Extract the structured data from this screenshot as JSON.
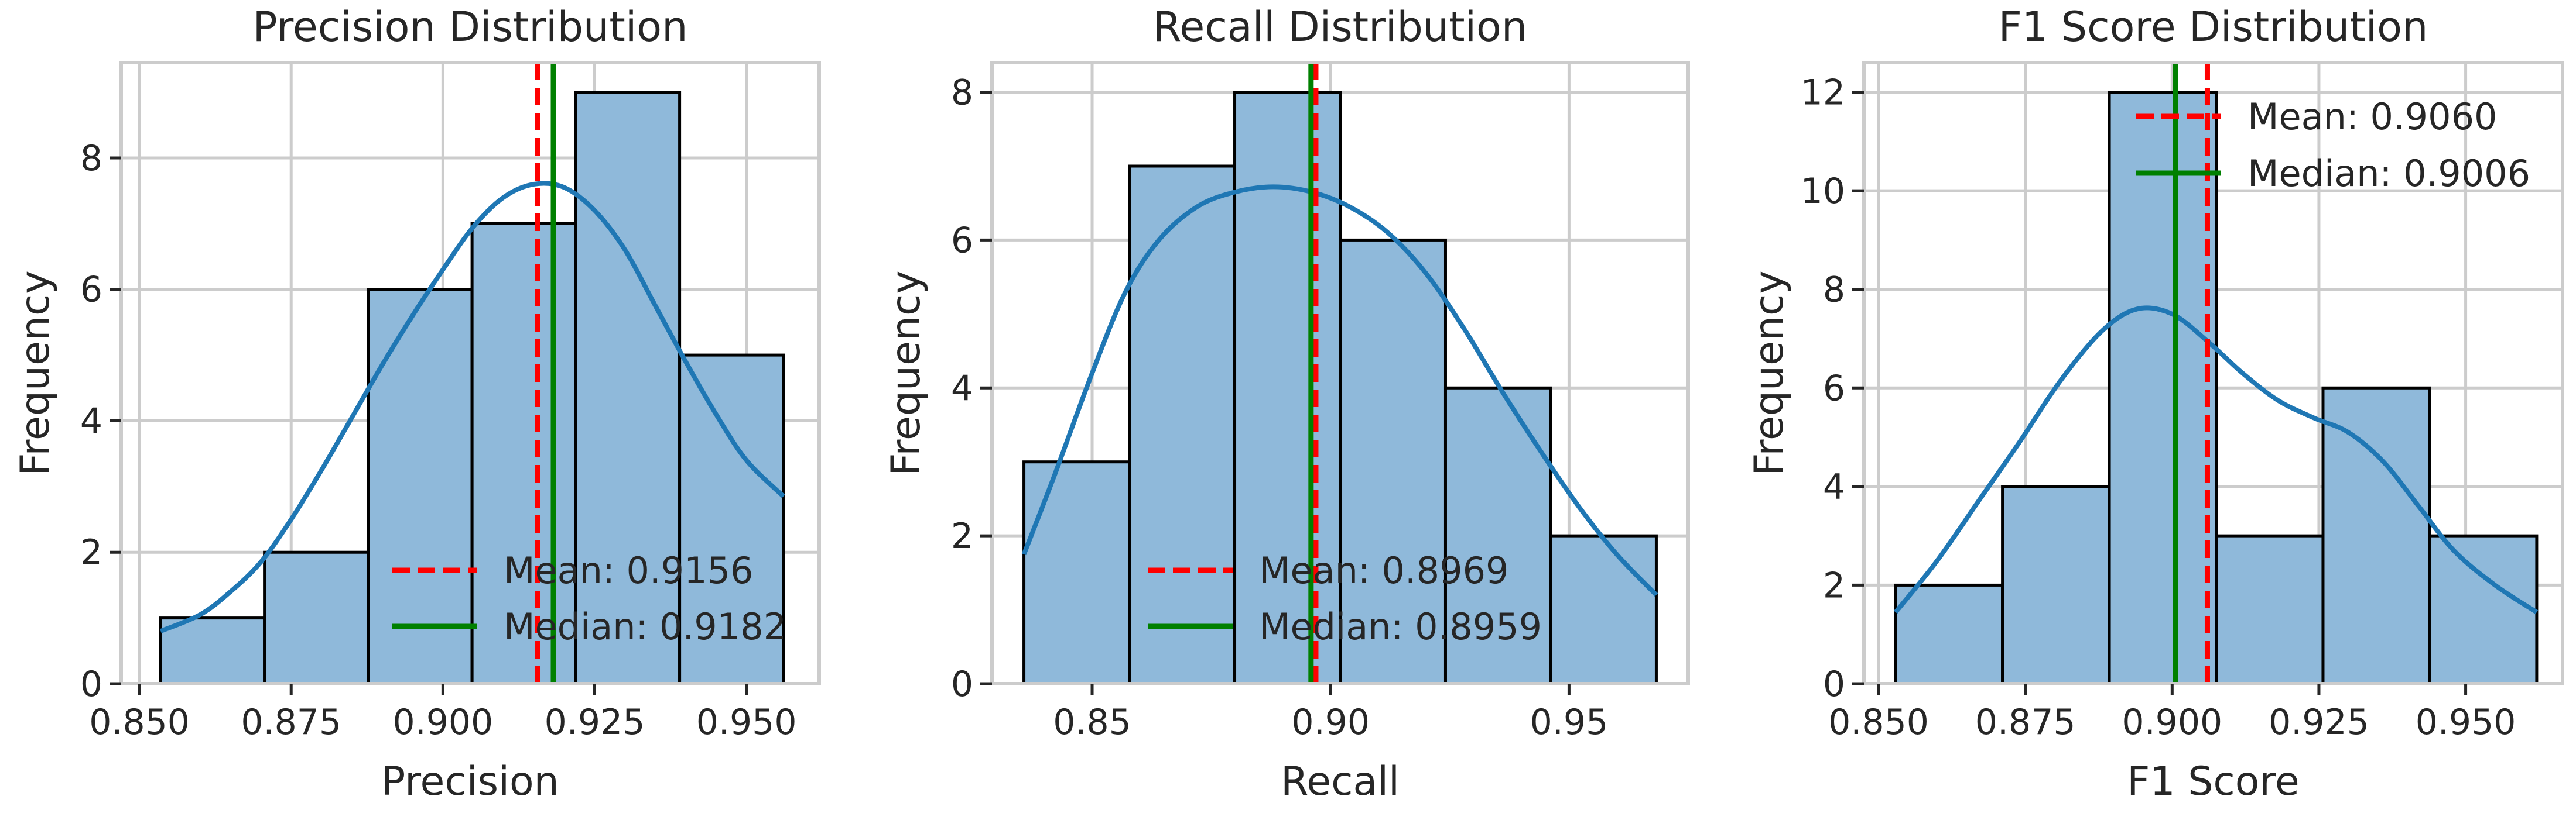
{
  "colors": {
    "bar_fill": "#8fb9da",
    "bar_edge": "#000000",
    "kde": "#1f77b4",
    "mean": "#ff0000",
    "median": "#008000",
    "grid": "#cccccc",
    "spine": "#cccccc"
  },
  "chart_data": [
    {
      "type": "bar",
      "title": "Precision Distribution",
      "xlabel": "Precision",
      "ylabel": "Frequency",
      "xlim": [
        0.847,
        0.962
      ],
      "ylim": [
        0,
        9.45
      ],
      "xticks": [
        0.85,
        0.875,
        0.9,
        0.925,
        0.95
      ],
      "xtick_labels": [
        "0.850",
        "0.875",
        "0.900",
        "0.925",
        "0.950"
      ],
      "yticks": [
        0,
        2,
        4,
        6,
        8
      ],
      "ytick_labels": [
        "0",
        "2",
        "4",
        "6",
        "8"
      ],
      "bin_edges": [
        0.8535,
        0.8706,
        0.8877,
        0.9048,
        0.9219,
        0.939,
        0.9561
      ],
      "counts": [
        1,
        2,
        6,
        7,
        9,
        5
      ],
      "kde": {
        "x": [
          0.8535,
          0.86,
          0.865,
          0.87,
          0.875,
          0.88,
          0.885,
          0.89,
          0.895,
          0.9,
          0.905,
          0.91,
          0.915,
          0.92,
          0.925,
          0.93,
          0.935,
          0.94,
          0.945,
          0.95,
          0.9561
        ],
        "y": [
          0.8,
          1.05,
          1.4,
          1.85,
          2.5,
          3.25,
          4.05,
          4.85,
          5.6,
          6.3,
          6.95,
          7.4,
          7.6,
          7.55,
          7.2,
          6.6,
          5.75,
          4.9,
          4.1,
          3.4,
          2.85
        ]
      },
      "mean": 0.9156,
      "median": 0.9182,
      "legend": [
        "Mean: 0.9156",
        "Median: 0.9182"
      ],
      "legend_loc": "lower right"
    },
    {
      "type": "bar",
      "title": "Recall Distribution",
      "xlabel": "Recall",
      "ylabel": "Frequency",
      "xlim": [
        0.829,
        0.975
      ],
      "ylim": [
        0,
        8.4
      ],
      "xticks": [
        0.85,
        0.9,
        0.95
      ],
      "xtick_labels": [
        "0.85",
        "0.90",
        "0.95"
      ],
      "yticks": [
        0,
        2,
        4,
        6,
        8
      ],
      "ytick_labels": [
        "0",
        "2",
        "4",
        "6",
        "8"
      ],
      "bin_edges": [
        0.8357,
        0.8578,
        0.8799,
        0.902,
        0.9241,
        0.9462,
        0.9683
      ],
      "counts": [
        3,
        7,
        8,
        6,
        4,
        2
      ],
      "kde": {
        "x": [
          0.8357,
          0.842,
          0.85,
          0.857,
          0.864,
          0.872,
          0.88,
          0.888,
          0.896,
          0.904,
          0.912,
          0.92,
          0.928,
          0.936,
          0.944,
          0.952,
          0.96,
          0.9683
        ],
        "y": [
          1.75,
          2.8,
          4.2,
          5.3,
          6.0,
          6.45,
          6.65,
          6.72,
          6.65,
          6.45,
          6.1,
          5.55,
          4.8,
          3.95,
          3.15,
          2.4,
          1.75,
          1.2
        ]
      },
      "mean": 0.8969,
      "median": 0.8959,
      "legend": [
        "Mean: 0.8969",
        "Median: 0.8959"
      ],
      "legend_loc": "lower center"
    },
    {
      "type": "bar",
      "title": "F1 Score Distribution",
      "xlabel": "F1 Score",
      "ylabel": "Frequency",
      "xlim": [
        0.8475,
        0.9665
      ],
      "ylim": [
        0,
        12.6
      ],
      "xticks": [
        0.85,
        0.875,
        0.9,
        0.925,
        0.95
      ],
      "xtick_labels": [
        "0.850",
        "0.875",
        "0.900",
        "0.925",
        "0.950"
      ],
      "yticks": [
        0,
        2,
        4,
        6,
        8,
        10,
        12
      ],
      "ytick_labels": [
        "0",
        "2",
        "4",
        "6",
        "8",
        "10",
        "12"
      ],
      "bin_edges": [
        0.8529,
        0.8711,
        0.8893,
        0.9075,
        0.9257,
        0.9439,
        0.9621
      ],
      "counts": [
        2,
        4,
        12,
        3,
        6,
        3
      ],
      "kde": {
        "x": [
          0.8529,
          0.86,
          0.867,
          0.874,
          0.881,
          0.888,
          0.894,
          0.9,
          0.906,
          0.912,
          0.918,
          0.924,
          0.93,
          0.936,
          0.942,
          0.948,
          0.955,
          0.9621
        ],
        "y": [
          1.45,
          2.5,
          3.7,
          4.9,
          6.15,
          7.15,
          7.6,
          7.5,
          6.95,
          6.3,
          5.75,
          5.4,
          5.1,
          4.5,
          3.6,
          2.7,
          2.0,
          1.45
        ]
      },
      "mean": 0.906,
      "median": 0.9006,
      "legend": [
        "Mean: 0.9060",
        "Median: 0.9006"
      ],
      "legend_loc": "upper right"
    }
  ]
}
